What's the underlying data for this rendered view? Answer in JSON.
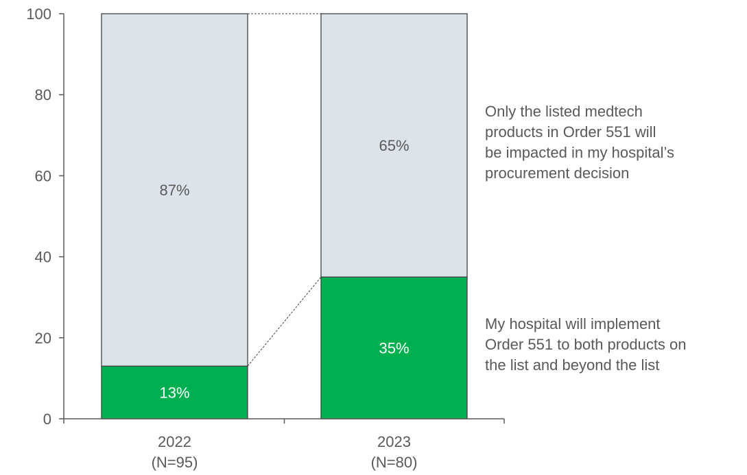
{
  "chart_data": {
    "type": "bar",
    "stacked": true,
    "percent_labels": true,
    "ylim": [
      0,
      100
    ],
    "yticks": [
      0,
      20,
      40,
      60,
      80,
      100
    ],
    "categories": [
      {
        "label": "2022",
        "sublabel": "(N=95)"
      },
      {
        "label": "2023",
        "sublabel": "(N=80)"
      }
    ],
    "series": [
      {
        "key": "both",
        "values": [
          13,
          35
        ],
        "color": "#00b050"
      },
      {
        "key": "listed",
        "values": [
          87,
          65
        ],
        "color": "#dde3ea"
      }
    ],
    "annotations": {
      "listed": [
        "Only the listed medtech",
        "products in Order 551 will",
        "be impacted in my hospital’s",
        "procurement decision"
      ],
      "both": [
        "My hospital will implement",
        "Order 551 to both products on",
        "the list and beyond the list"
      ]
    },
    "axis_color": "#595959",
    "label_color": "#595959",
    "bar_label_color_on_green": "#ffffff",
    "connector_style": "dashed"
  }
}
